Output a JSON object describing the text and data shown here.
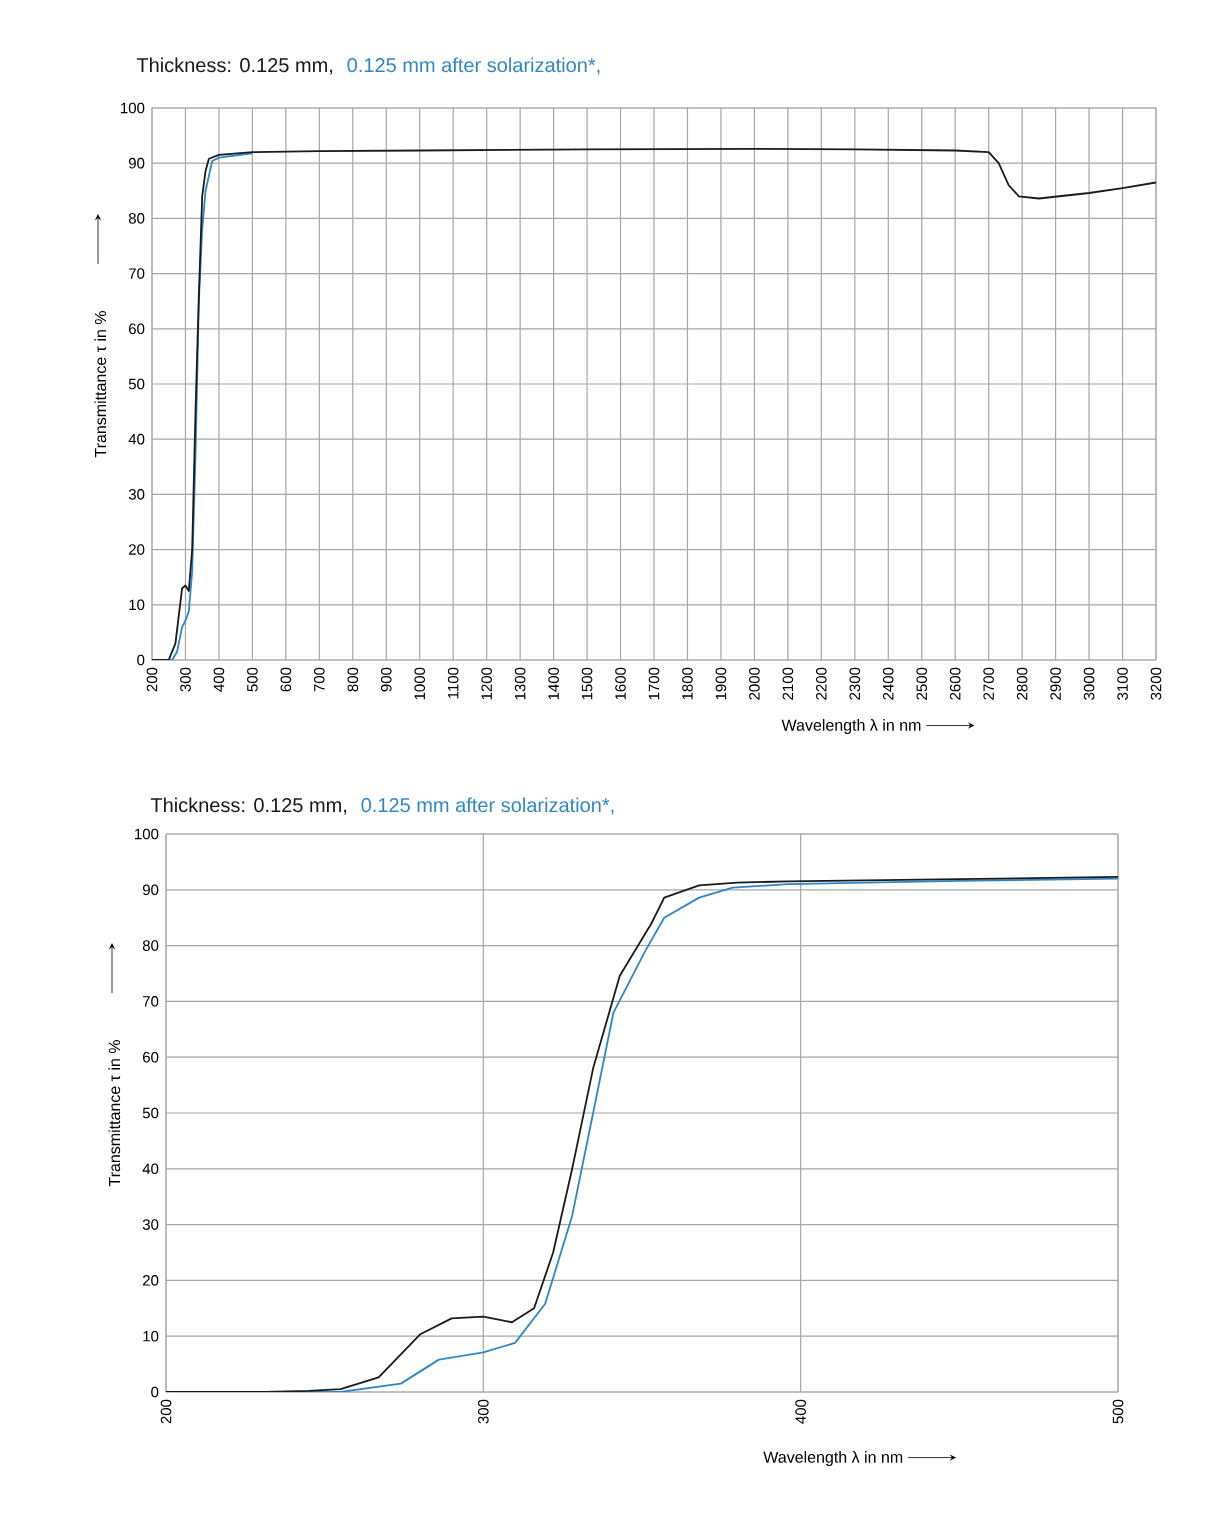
{
  "chart_data": [
    {
      "type": "line",
      "xlabel": "Wavelength λ in nm",
      "ylabel": "Transmittance τ in %",
      "xlim": [
        200,
        3200
      ],
      "xticks": [
        200,
        300,
        400,
        500,
        600,
        700,
        800,
        900,
        1000,
        1100,
        1200,
        1300,
        1400,
        1500,
        1600,
        1700,
        1800,
        1900,
        2000,
        2100,
        2200,
        2300,
        2400,
        2500,
        2600,
        2700,
        2800,
        2900,
        3000,
        3100,
        3200
      ],
      "ylim": [
        0,
        100
      ],
      "yticks": [
        0,
        10,
        20,
        30,
        40,
        50,
        60,
        70,
        80,
        90,
        100
      ],
      "grid": true,
      "series": [
        {
          "name": "Thickness: 0.125 mm,",
          "color": "#1a1a1a",
          "x": [
            200,
            250,
            270,
            290,
            300,
            310,
            320,
            330,
            340,
            350,
            360,
            370,
            400,
            500,
            700,
            1000,
            1500,
            2000,
            2300,
            2600,
            2700,
            2730,
            2760,
            2790,
            2850,
            3000,
            3100,
            3200
          ],
          "values": [
            0,
            0,
            3,
            13,
            13.5,
            12.5,
            20,
            45,
            66,
            84,
            88.6,
            90.8,
            91.5,
            92,
            92.2,
            92.3,
            92.5,
            92.6,
            92.5,
            92.3,
            92,
            90,
            86,
            84,
            83.6,
            84.6,
            85.5,
            86.5
          ]
        },
        {
          "name": "0.125 mm after solarization*,",
          "color": "#2e86c8",
          "x": [
            200,
            260,
            275,
            290,
            300,
            310,
            320,
            330,
            340,
            350,
            360,
            380,
            400,
            500
          ],
          "values": [
            0,
            0,
            1.5,
            6,
            7.1,
            8.8,
            16,
            37,
            65,
            78,
            85,
            90.4,
            91,
            91.8
          ]
        }
      ]
    },
    {
      "type": "line",
      "xlabel": "Wavelength λ in nm",
      "ylabel": "Transmittance τ in %",
      "xlim": [
        200,
        500
      ],
      "xticks": [
        200,
        300,
        400,
        500
      ],
      "ylim": [
        0,
        100
      ],
      "yticks": [
        0,
        10,
        20,
        30,
        40,
        50,
        60,
        70,
        80,
        90,
        100
      ],
      "grid": true,
      "series": [
        {
          "name": "Thickness: 0.125 mm,",
          "color": "#1a1a1a",
          "x": [
            200,
            231,
            245,
            255,
            267,
            280,
            290,
            300,
            309,
            316,
            322,
            328,
            334.6,
            343,
            353,
            357,
            368,
            380,
            396,
            450,
            500
          ],
          "values": [
            0,
            0,
            0.2,
            0.5,
            2.6,
            10.3,
            13.2,
            13.5,
            12.5,
            15,
            25,
            40,
            58,
            74.6,
            84,
            88.6,
            90.8,
            91.3,
            91.5,
            91.9,
            92.3
          ]
        },
        {
          "name": "0.125 mm after solarization*,",
          "color": "#2e86c8",
          "x": [
            200,
            240,
            255,
            274,
            286,
            300,
            310,
            319.5,
            328,
            334.6,
            341,
            351,
            357,
            368,
            378.6,
            396,
            450,
            500
          ],
          "values": [
            0,
            0,
            0,
            1.5,
            5.8,
            7.1,
            8.8,
            15.8,
            31.6,
            50,
            68,
            79,
            85,
            88.6,
            90.4,
            91,
            91.6,
            92
          ]
        }
      ]
    }
  ]
}
